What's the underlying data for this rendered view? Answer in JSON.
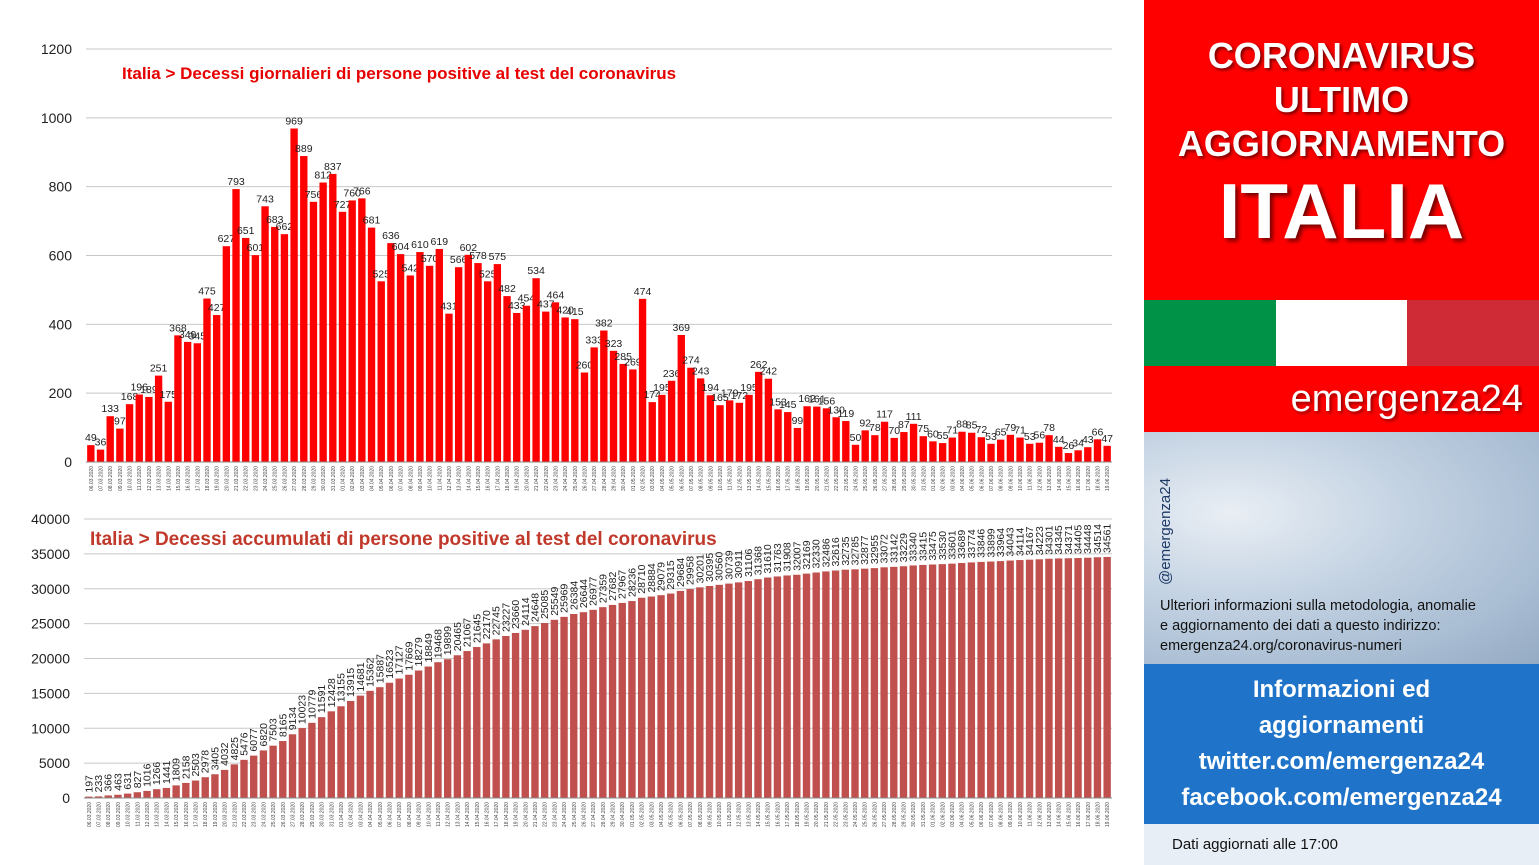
{
  "chart_data": [
    {
      "type": "bar",
      "title": "Italia > Decessi giornalieri di persone positive al test del coronavirus",
      "color": "#ff0000",
      "ylim": [
        0,
        1200
      ],
      "yticks": [
        0,
        200,
        400,
        600,
        800,
        1000,
        1200
      ],
      "grid": true,
      "categories": [
        "06.03.2020",
        "07.03.2020",
        "08.03.2020",
        "09.03.2020",
        "10.03.2020",
        "11.03.2020",
        "12.03.2020",
        "13.03.2020",
        "14.03.2020",
        "15.03.2020",
        "16.03.2020",
        "17.03.2020",
        "18.03.2020",
        "19.03.2020",
        "20.03.2020",
        "21.03.2020",
        "22.03.2020",
        "23.03.2020",
        "24.03.2020",
        "25.03.2020",
        "26.03.2020",
        "27.03.2020",
        "28.03.2020",
        "29.03.2020",
        "30.03.2020",
        "31.03.2020",
        "01.04.2020",
        "02.04.2020",
        "03.04.2020",
        "04.04.2020",
        "05.04.2020",
        "06.04.2020",
        "07.04.2020",
        "08.04.2020",
        "09.04.2020",
        "10.04.2020",
        "11.04.2020",
        "12.04.2020",
        "13.04.2020",
        "14.04.2020",
        "15.04.2020",
        "16.04.2020",
        "17.04.2020",
        "18.04.2020",
        "19.04.2020",
        "20.04.2020",
        "21.04.2020",
        "22.04.2020",
        "23.04.2020",
        "24.04.2020",
        "25.04.2020",
        "26.04.2020",
        "27.04.2020",
        "28.04.2020",
        "29.04.2020",
        "30.04.2020",
        "01.05.2020",
        "02.05.2020",
        "03.05.2020",
        "04.05.2020",
        "05.05.2020",
        "06.05.2020",
        "07.05.2020",
        "08.05.2020",
        "09.05.2020",
        "10.05.2020",
        "11.05.2020",
        "12.05.2020",
        "13.05.2020",
        "14.05.2020",
        "15.05.2020",
        "16.05.2020",
        "17.05.2020",
        "18.05.2020",
        "19.05.2020",
        "20.05.2020",
        "21.05.2020",
        "22.05.2020",
        "23.05.2020",
        "24.05.2020",
        "25.05.2020",
        "26.05.2020",
        "27.05.2020",
        "28.05.2020",
        "29.05.2020",
        "30.05.2020",
        "31.05.2020",
        "01.06.2020",
        "02.06.2020",
        "03.06.2020",
        "04.06.2020",
        "05.06.2020",
        "06.06.2020",
        "07.06.2020",
        "08.06.2020",
        "09.06.2020",
        "10.06.2020",
        "11.06.2020",
        "12.06.2020",
        "13.06.2020",
        "14.06.2020",
        "15.06.2020",
        "16.06.2020",
        "17.06.2020",
        "18.06.2020",
        "19.06.2020"
      ],
      "values": [
        49,
        36,
        133,
        97,
        168,
        196,
        189,
        251,
        175,
        368,
        349,
        345,
        475,
        427,
        627,
        793,
        651,
        601,
        743,
        683,
        662,
        969,
        889,
        756,
        812,
        837,
        727,
        760,
        766,
        681,
        525,
        636,
        604,
        542,
        610,
        570,
        619,
        431,
        566,
        602,
        578,
        525,
        575,
        482,
        433,
        454,
        534,
        437,
        464,
        420,
        415,
        260,
        333,
        382,
        323,
        285,
        269,
        474,
        174,
        195,
        236,
        369,
        274,
        243,
        194,
        165,
        179,
        172,
        195,
        262,
        242,
        153,
        145,
        99,
        162,
        161,
        156,
        130,
        119,
        50,
        92,
        78,
        117,
        70,
        87,
        111,
        75,
        60,
        55,
        71,
        88,
        85,
        72,
        53,
        65,
        79,
        71,
        53,
        56,
        78,
        44,
        26,
        34,
        43,
        66,
        47
      ]
    },
    {
      "type": "bar",
      "title": "Italia > Decessi accumulati di persone positive al test del coronavirus",
      "color": "#c0504d",
      "ylim": [
        0,
        40000
      ],
      "yticks": [
        0,
        5000,
        10000,
        15000,
        20000,
        25000,
        30000,
        35000,
        40000
      ],
      "grid": true,
      "categories": [
        "06.03.2020",
        "07.03.2020",
        "08.03.2020",
        "09.03.2020",
        "10.03.2020",
        "11.03.2020",
        "12.03.2020",
        "13.03.2020",
        "14.03.2020",
        "15.03.2020",
        "16.03.2020",
        "17.03.2020",
        "18.03.2020",
        "19.03.2020",
        "20.03.2020",
        "21.03.2020",
        "22.03.2020",
        "23.03.2020",
        "24.03.2020",
        "25.03.2020",
        "26.03.2020",
        "27.03.2020",
        "28.03.2020",
        "29.03.2020",
        "30.03.2020",
        "31.03.2020",
        "01.04.2020",
        "02.04.2020",
        "03.04.2020",
        "04.04.2020",
        "05.04.2020",
        "06.04.2020",
        "07.04.2020",
        "08.04.2020",
        "09.04.2020",
        "10.04.2020",
        "11.04.2020",
        "12.04.2020",
        "13.04.2020",
        "14.04.2020",
        "15.04.2020",
        "16.04.2020",
        "17.04.2020",
        "18.04.2020",
        "19.04.2020",
        "20.04.2020",
        "21.04.2020",
        "22.04.2020",
        "23.04.2020",
        "24.04.2020",
        "25.04.2020",
        "26.04.2020",
        "27.04.2020",
        "28.04.2020",
        "29.04.2020",
        "30.04.2020",
        "01.05.2020",
        "02.05.2020",
        "03.05.2020",
        "04.05.2020",
        "05.05.2020",
        "06.05.2020",
        "07.05.2020",
        "08.05.2020",
        "09.05.2020",
        "10.05.2020",
        "11.05.2020",
        "12.05.2020",
        "13.05.2020",
        "14.05.2020",
        "15.05.2020",
        "16.05.2020",
        "17.05.2020",
        "18.05.2020",
        "19.05.2020",
        "20.05.2020",
        "21.05.2020",
        "22.05.2020",
        "23.05.2020",
        "24.05.2020",
        "25.05.2020",
        "26.05.2020",
        "27.05.2020",
        "28.05.2020",
        "29.05.2020",
        "30.05.2020",
        "31.05.2020",
        "01.06.2020",
        "02.06.2020",
        "03.06.2020",
        "04.06.2020",
        "05.06.2020",
        "06.06.2020",
        "07.06.2020",
        "08.06.2020",
        "09.06.2020",
        "10.06.2020",
        "11.06.2020",
        "12.06.2020",
        "13.06.2020",
        "14.06.2020",
        "15.06.2020",
        "16.06.2020",
        "17.06.2020",
        "18.06.2020",
        "19.06.2020"
      ],
      "values": [
        197,
        233,
        366,
        463,
        631,
        827,
        1016,
        1266,
        1441,
        1809,
        2158,
        2503,
        2978,
        3405,
        4032,
        4825,
        5476,
        6077,
        6820,
        7503,
        8165,
        9134,
        10023,
        10779,
        11591,
        12428,
        13155,
        13915,
        14681,
        15362,
        15887,
        16523,
        17127,
        17669,
        18279,
        18849,
        19468,
        19899,
        20465,
        21067,
        21645,
        22170,
        22745,
        23227,
        23660,
        24114,
        24648,
        25085,
        25549,
        25969,
        26384,
        26644,
        26977,
        27359,
        27682,
        27967,
        28236,
        28710,
        28884,
        29079,
        29315,
        29684,
        29958,
        30201,
        30395,
        30560,
        30739,
        30911,
        31106,
        31368,
        31610,
        31763,
        31908,
        32007,
        32169,
        32330,
        32486,
        32616,
        32735,
        32785,
        32877,
        32955,
        33072,
        33142,
        33229,
        33340,
        33415,
        33475,
        33530,
        33601,
        33689,
        33774,
        33846,
        33899,
        33964,
        34043,
        34114,
        34167,
        34223,
        34301,
        34345,
        34371,
        34405,
        34448,
        34514,
        34561
      ]
    }
  ],
  "sidebar": {
    "header_lines": [
      "CORONAVIRUS",
      "ULTIMO",
      "AGGIORNAMENTO"
    ],
    "country": "ITALIA",
    "flag_colors": [
      "#009246",
      "#ffffff",
      "#ce2b37"
    ],
    "brand": "emergenza24",
    "handle": "@emergenza24",
    "info_lines": [
      "Ulteriori informazioni sulla metodologia, anomalie",
      "e aggiornamento dei dati a questo indirizzo:",
      "emergenza24.org/coronavirus-numeri"
    ],
    "social_lines": [
      "Informazioni ed",
      "aggiornamenti",
      "twitter.com/emergenza24",
      "facebook.com/emergenza24"
    ],
    "updated": "Dati aggiornati alle 17:00"
  }
}
